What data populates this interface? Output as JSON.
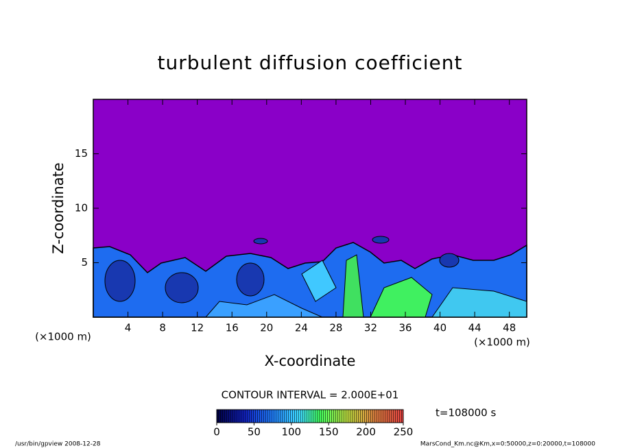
{
  "chart_data": {
    "type": "heatmap",
    "title": "turbulent diffusion coefficient",
    "xlabel": "X-coordinate",
    "ylabel": "Z-coordinate",
    "xunit": "(×1000 m)",
    "xlim": [
      0,
      50
    ],
    "ylim": [
      0,
      20
    ],
    "xticks": [
      4,
      8,
      12,
      16,
      20,
      24,
      28,
      32,
      36,
      40,
      44,
      48
    ],
    "yticks": [
      5,
      10,
      15
    ],
    "contour_interval": "CONTOUR INTERVAL = 2.000E+01",
    "colorbar": {
      "lim": [
        0,
        250
      ],
      "ticks": [
        0,
        50,
        100,
        150,
        200,
        250
      ]
    },
    "time_label": "t=108000 s",
    "footer_left": "/usr/bin/gpview  2008-12-28",
    "footer_right": "MarsCond_Km.nc@Km,x=0:50000,z=0:20000,t=108000"
  }
}
